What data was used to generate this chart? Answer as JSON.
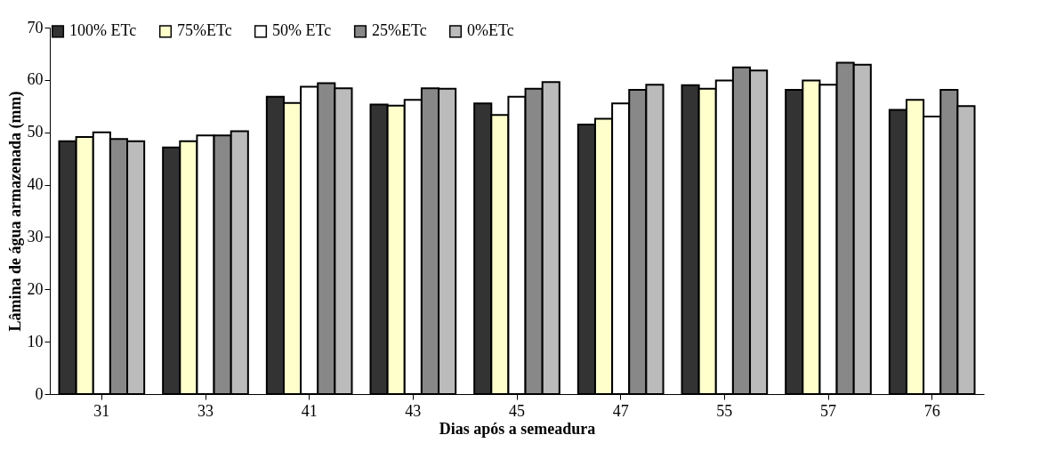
{
  "chart_data": {
    "type": "bar",
    "xlabel": "Dias após a semeadura",
    "ylabel": "Lâmina de água armazenada (mm)",
    "categories": [
      "31",
      "33",
      "41",
      "43",
      "45",
      "47",
      "55",
      "57",
      "76"
    ],
    "series": [
      {
        "name": "100% ETc",
        "color": "#333333",
        "values": [
          48.3,
          47.1,
          56.8,
          55.3,
          55.5,
          51.5,
          59.0,
          58.1,
          54.3
        ]
      },
      {
        "name": "75%ETc",
        "color": "#ffffcc",
        "values": [
          49.1,
          48.3,
          55.6,
          55.1,
          53.3,
          52.6,
          58.3,
          59.9,
          56.2
        ]
      },
      {
        "name": "50% ETc",
        "color": "#ffffff",
        "values": [
          50.0,
          49.4,
          58.7,
          56.2,
          56.8,
          55.5,
          59.9,
          59.1,
          53.0
        ]
      },
      {
        "name": "25%ETc",
        "color": "#888888",
        "values": [
          48.7,
          49.4,
          59.4,
          58.4,
          58.3,
          58.1,
          62.4,
          63.3,
          58.1
        ]
      },
      {
        "name": "0%ETc",
        "color": "#bbbbbb",
        "values": [
          48.3,
          50.2,
          58.4,
          58.3,
          59.6,
          59.1,
          61.8,
          62.9,
          55.0
        ]
      }
    ],
    "ylim": [
      0,
      70
    ],
    "yticks": [
      0,
      10,
      20,
      30,
      40,
      50,
      60,
      70
    ],
    "grid": false,
    "legend": "top"
  }
}
